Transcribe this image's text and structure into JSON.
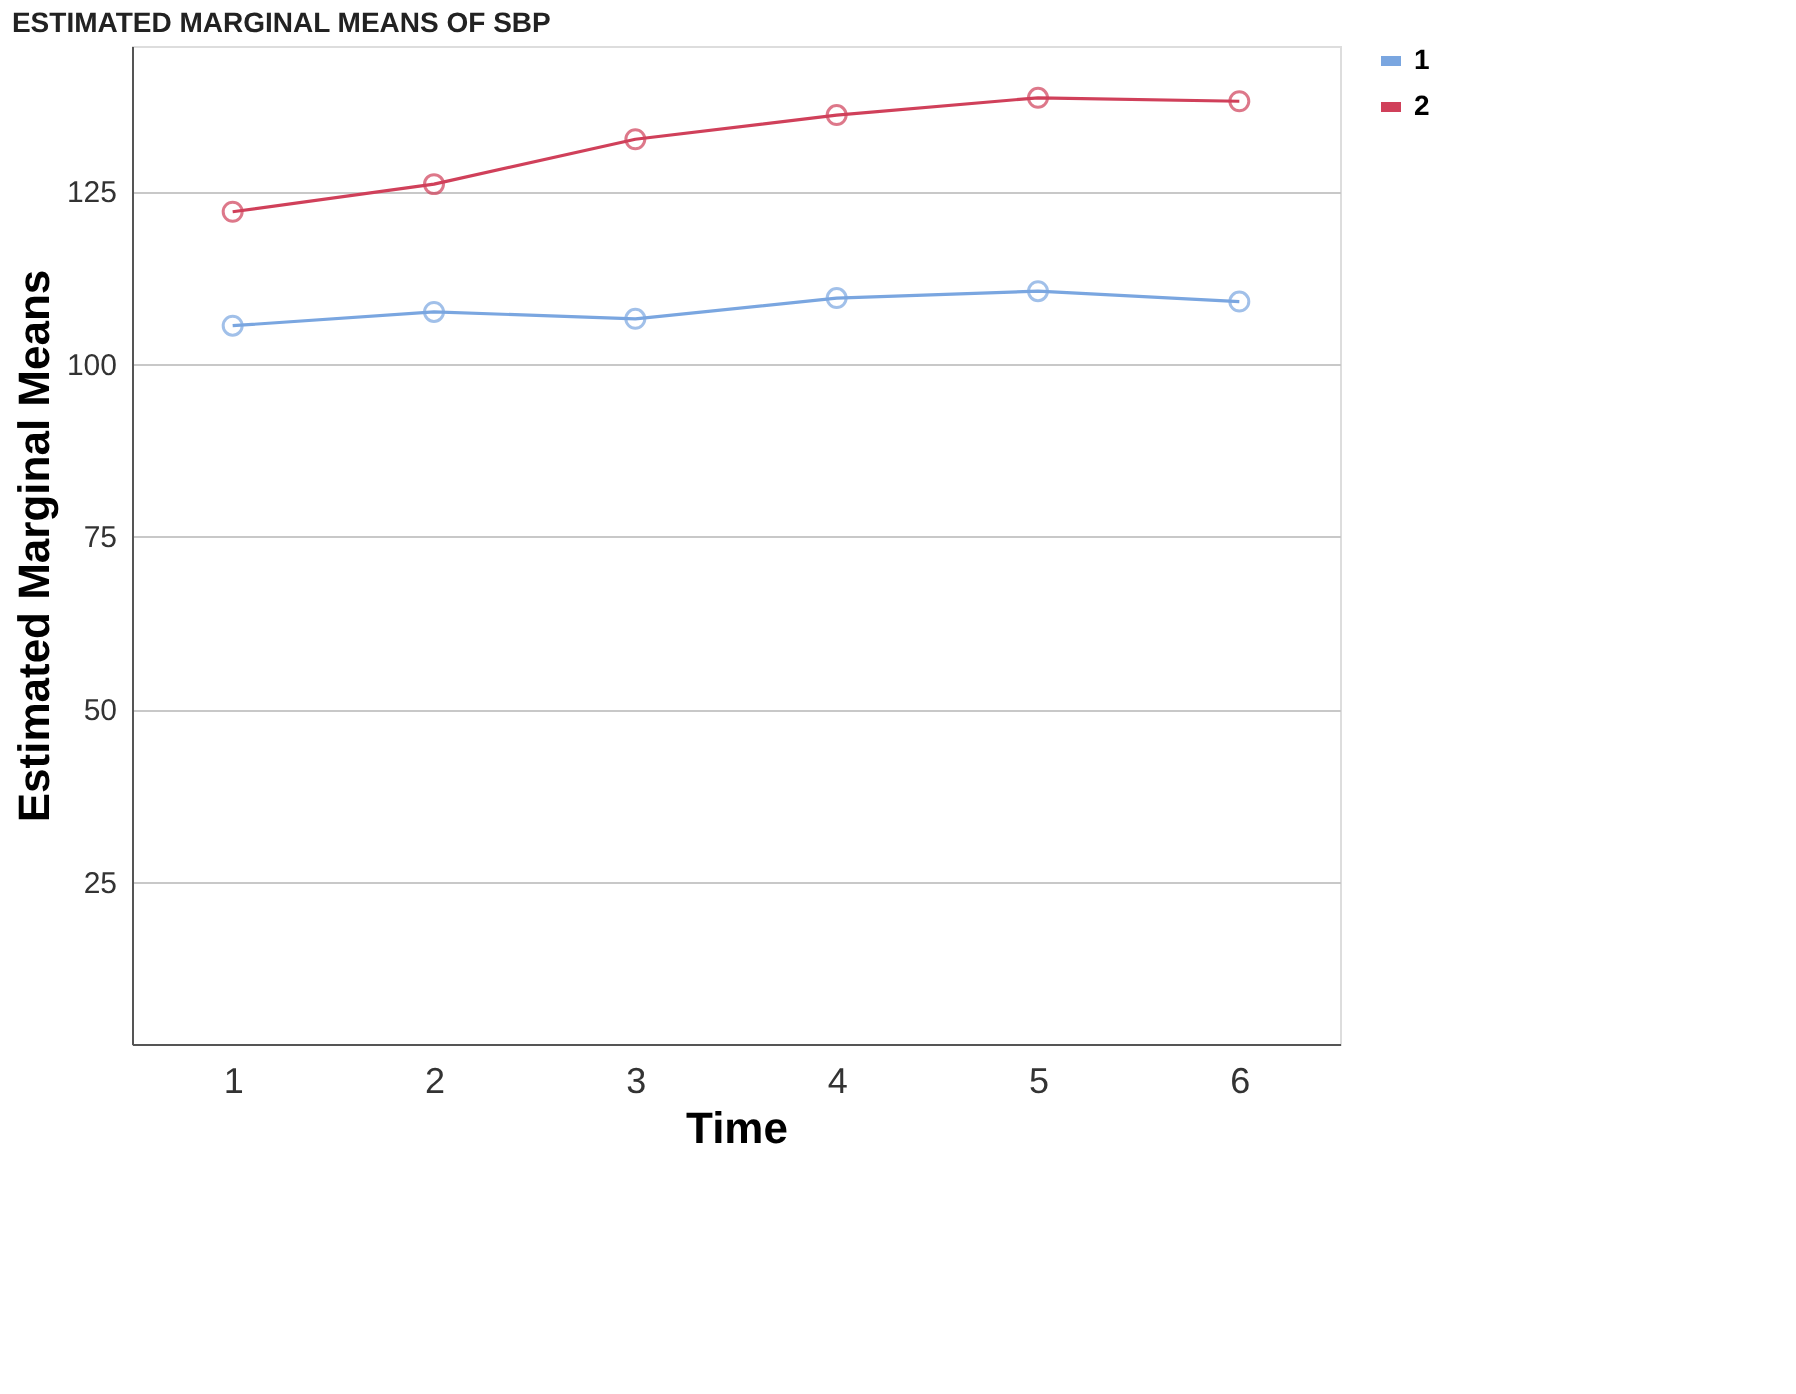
{
  "chart_data": {
    "type": "line",
    "title": "ESTIMATED MARGINAL MEANS OF SBP",
    "xlabel": "Time",
    "ylabel": "Estimated Marginal Means",
    "categories": [
      "1",
      "2",
      "3",
      "4",
      "5",
      "6"
    ],
    "series": [
      {
        "name": "1",
        "color": "#7aa6e0",
        "values": [
          105.5,
          107.5,
          106.5,
          109.5,
          110.5,
          109
        ]
      },
      {
        "name": "2",
        "color": "#d0405a",
        "values": [
          122,
          126,
          132.5,
          136,
          138.5,
          138
        ]
      }
    ],
    "ylim": [
      1.5,
      146
    ],
    "yticks": [
      25,
      50,
      75,
      100,
      125
    ],
    "grid": "y",
    "legend": "top right",
    "marker": "circle",
    "line_style": "solid"
  }
}
